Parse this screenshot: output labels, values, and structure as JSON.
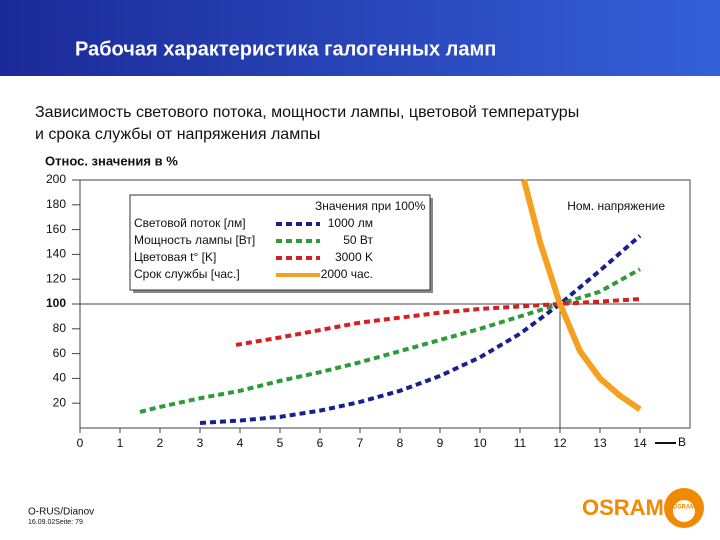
{
  "slide": {
    "title": "Рабочая характеристика галогенных ламп",
    "subtitle_lines": [
      "Зависимость светового потока, мощности лампы, цветовой температуры",
      "и срока службы от напряжения лампы"
    ],
    "footer": {
      "author": "O-RUS/Dianov",
      "date": "16.09.02Seite: 79"
    },
    "logo": "OSRAM"
  },
  "chart_data": {
    "type": "line",
    "y_label": "Относ. значения в %",
    "x_label": "B",
    "xlim": [
      0,
      15.25
    ],
    "ylim": [
      0,
      200
    ],
    "xticks": [
      0,
      1,
      2,
      3,
      4,
      5,
      6,
      7,
      8,
      9,
      10,
      11,
      12,
      13,
      14
    ],
    "yticks": [
      20,
      40,
      60,
      80,
      100,
      120,
      140,
      160,
      180,
      200
    ],
    "reference_x": 12,
    "reference_label": "Ном. напряжение",
    "legend_title": "Значения при 100%",
    "series": [
      {
        "name": "Световой поток [лм]",
        "nominal": "1000 лм",
        "color": "#1a1f8c",
        "style": "dashed",
        "x": [
          3,
          4,
          5,
          6,
          7,
          8,
          9,
          10,
          11,
          12,
          13,
          14
        ],
        "values": [
          4,
          6,
          9,
          14,
          21,
          30,
          42,
          57,
          76,
          100,
          127,
          155
        ]
      },
      {
        "name": "Мощность лампы [Вт]",
        "nominal": "50 Вт",
        "color": "#2e9a3a",
        "style": "dashed",
        "x": [
          1.5,
          2,
          3,
          4,
          5,
          6,
          7,
          8,
          9,
          10,
          11,
          12,
          13,
          14
        ],
        "values": [
          13,
          17,
          24,
          30,
          38,
          45,
          53,
          62,
          71,
          80,
          90,
          100,
          110,
          128
        ]
      },
      {
        "name": "Цветовая t° [K]",
        "nominal": "3000 K",
        "color": "#d42020",
        "style": "dashed",
        "x": [
          3.9,
          5,
          6,
          7,
          8,
          9,
          10,
          11,
          12,
          13,
          14
        ],
        "values": [
          67,
          73,
          79,
          85,
          89,
          93,
          96,
          98,
          100,
          102,
          104
        ]
      },
      {
        "name": "Срок службы [час.]",
        "nominal": "2000 час.",
        "color": "#f5a020",
        "style": "solid",
        "x": [
          11.1,
          11.5,
          12,
          12.5,
          13,
          13.5,
          14
        ],
        "values": [
          200,
          150,
          100,
          62,
          40,
          26,
          15
        ]
      }
    ]
  }
}
